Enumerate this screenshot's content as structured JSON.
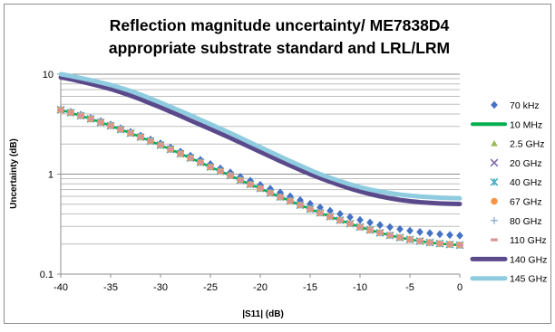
{
  "chart_data": {
    "type": "line",
    "title_lines": [
      "Reflection magnitude uncertainty/ ME7838D4",
      "appropriate substrate standard and LRL/LRM"
    ],
    "xlabel": "|S11| (dB)",
    "ylabel": "Uncertainty (dB)",
    "xlim": [
      -40,
      0
    ],
    "ylim": [
      0.1,
      10
    ],
    "y_scale": "log",
    "grid": true,
    "legend_position": "right",
    "x_ticks": [
      -40,
      -35,
      -30,
      -25,
      -20,
      -15,
      -10,
      -5,
      0
    ],
    "y_ticks": [
      0.1,
      1,
      10
    ],
    "y_tick_labels": [
      "0.1",
      "1",
      "10"
    ],
    "x": [
      -40,
      -39,
      -38,
      -37,
      -36,
      -35,
      -34,
      -33,
      -32,
      -31,
      -30,
      -29,
      -28,
      -27,
      -26,
      -25,
      -24,
      -23,
      -22,
      -21,
      -20,
      -19,
      -18,
      -17,
      -16,
      -15,
      -14,
      -13,
      -12,
      -11,
      -10,
      -9,
      -8,
      -7,
      -6,
      -5,
      -4,
      -3,
      -2,
      -1,
      0
    ],
    "series": [
      {
        "name": "70 kHz",
        "style": "marker",
        "marker": "diamond",
        "color": "#4472C4",
        "values": [
          4.45,
          4.2,
          3.92,
          3.65,
          3.39,
          3.13,
          2.88,
          2.65,
          2.43,
          2.22,
          2.03,
          1.85,
          1.68,
          1.53,
          1.39,
          1.26,
          1.14,
          1.04,
          0.94,
          0.86,
          0.78,
          0.715,
          0.655,
          0.6,
          0.55,
          0.505,
          0.465,
          0.43,
          0.4,
          0.372,
          0.348,
          0.328,
          0.31,
          0.295,
          0.282,
          0.272,
          0.264,
          0.257,
          0.251,
          0.246,
          0.243
        ]
      },
      {
        "name": "10 MHz",
        "style": "line",
        "color": "#00B050",
        "values": [
          4.4,
          4.12,
          3.84,
          3.57,
          3.3,
          3.05,
          2.8,
          2.57,
          2.35,
          2.14,
          1.95,
          1.77,
          1.6,
          1.45,
          1.31,
          1.18,
          1.07,
          0.97,
          0.87,
          0.79,
          0.72,
          0.65,
          0.59,
          0.54,
          0.49,
          0.447,
          0.41,
          0.376,
          0.346,
          0.32,
          0.296,
          0.276,
          0.259,
          0.244,
          0.232,
          0.222,
          0.214,
          0.207,
          0.202,
          0.198,
          0.195
        ]
      },
      {
        "name": "2.5 GHz",
        "style": "marker",
        "marker": "triangle",
        "color": "#9BBB59",
        "values": [
          4.4,
          4.12,
          3.84,
          3.57,
          3.3,
          3.05,
          2.8,
          2.57,
          2.35,
          2.14,
          1.95,
          1.77,
          1.6,
          1.45,
          1.31,
          1.18,
          1.07,
          0.97,
          0.87,
          0.79,
          0.72,
          0.65,
          0.59,
          0.54,
          0.49,
          0.447,
          0.41,
          0.376,
          0.346,
          0.32,
          0.296,
          0.276,
          0.259,
          0.244,
          0.232,
          0.222,
          0.214,
          0.207,
          0.202,
          0.198,
          0.195
        ]
      },
      {
        "name": "20 GHz",
        "style": "marker",
        "marker": "x",
        "color": "#7F6BA8",
        "values": [
          4.4,
          4.12,
          3.84,
          3.57,
          3.3,
          3.05,
          2.8,
          2.57,
          2.35,
          2.14,
          1.95,
          1.77,
          1.6,
          1.45,
          1.31,
          1.18,
          1.07,
          0.97,
          0.87,
          0.79,
          0.72,
          0.65,
          0.59,
          0.54,
          0.49,
          0.447,
          0.41,
          0.376,
          0.346,
          0.32,
          0.296,
          0.276,
          0.259,
          0.244,
          0.232,
          0.222,
          0.214,
          0.207,
          0.202,
          0.198,
          0.195
        ]
      },
      {
        "name": "40 GHz",
        "style": "marker",
        "marker": "asterisk",
        "color": "#4BACC6",
        "values": [
          4.4,
          4.12,
          3.84,
          3.57,
          3.3,
          3.05,
          2.8,
          2.57,
          2.35,
          2.14,
          1.95,
          1.77,
          1.6,
          1.45,
          1.31,
          1.18,
          1.07,
          0.97,
          0.87,
          0.79,
          0.72,
          0.65,
          0.59,
          0.54,
          0.49,
          0.447,
          0.41,
          0.376,
          0.346,
          0.32,
          0.296,
          0.276,
          0.259,
          0.244,
          0.232,
          0.222,
          0.214,
          0.207,
          0.202,
          0.198,
          0.195
        ]
      },
      {
        "name": "67 GHz",
        "style": "marker",
        "marker": "circle",
        "color": "#F79646",
        "values": [
          4.4,
          4.12,
          3.84,
          3.57,
          3.3,
          3.05,
          2.8,
          2.57,
          2.35,
          2.14,
          1.95,
          1.77,
          1.6,
          1.45,
          1.31,
          1.18,
          1.07,
          0.97,
          0.87,
          0.79,
          0.72,
          0.65,
          0.59,
          0.54,
          0.49,
          0.447,
          0.41,
          0.376,
          0.346,
          0.32,
          0.296,
          0.276,
          0.259,
          0.244,
          0.232,
          0.222,
          0.214,
          0.207,
          0.202,
          0.198,
          0.195
        ]
      },
      {
        "name": "80 GHz",
        "style": "marker",
        "marker": "plus",
        "color": "#95B3D7",
        "values": [
          4.4,
          4.12,
          3.84,
          3.57,
          3.3,
          3.05,
          2.8,
          2.57,
          2.35,
          2.14,
          1.95,
          1.77,
          1.6,
          1.45,
          1.31,
          1.18,
          1.07,
          0.97,
          0.87,
          0.79,
          0.72,
          0.65,
          0.59,
          0.54,
          0.49,
          0.447,
          0.41,
          0.376,
          0.346,
          0.32,
          0.296,
          0.276,
          0.259,
          0.244,
          0.232,
          0.222,
          0.214,
          0.207,
          0.202,
          0.198,
          0.195
        ]
      },
      {
        "name": "110 GHz",
        "style": "marker",
        "marker": "dash",
        "color": "#D99594",
        "values": [
          4.4,
          4.12,
          3.84,
          3.57,
          3.3,
          3.05,
          2.8,
          2.57,
          2.35,
          2.14,
          1.95,
          1.77,
          1.6,
          1.45,
          1.31,
          1.18,
          1.07,
          0.97,
          0.87,
          0.79,
          0.72,
          0.65,
          0.59,
          0.54,
          0.49,
          0.447,
          0.41,
          0.376,
          0.346,
          0.32,
          0.296,
          0.276,
          0.259,
          0.244,
          0.232,
          0.222,
          0.214,
          0.207,
          0.202,
          0.198,
          0.195
        ]
      },
      {
        "name": "140 GHz",
        "style": "line",
        "color": "#5B4A8B",
        "values": [
          9.3,
          8.9,
          8.45,
          8.0,
          7.55,
          7.1,
          6.6,
          6.1,
          5.6,
          5.1,
          4.65,
          4.22,
          3.82,
          3.45,
          3.12,
          2.82,
          2.55,
          2.3,
          2.07,
          1.86,
          1.67,
          1.5,
          1.35,
          1.22,
          1.1,
          1.0,
          0.915,
          0.84,
          0.775,
          0.72,
          0.672,
          0.632,
          0.6,
          0.573,
          0.552,
          0.536,
          0.524,
          0.515,
          0.509,
          0.505,
          0.503
        ]
      },
      {
        "name": "145 GHz",
        "style": "line",
        "color": "#8FCCE0",
        "values": [
          10.0,
          9.6,
          9.15,
          8.7,
          8.25,
          7.8,
          7.3,
          6.8,
          6.25,
          5.7,
          5.2,
          4.72,
          4.28,
          3.88,
          3.5,
          3.16,
          2.85,
          2.57,
          2.31,
          2.07,
          1.86,
          1.67,
          1.5,
          1.35,
          1.22,
          1.1,
          1.0,
          0.92,
          0.85,
          0.79,
          0.74,
          0.7,
          0.67,
          0.645,
          0.625,
          0.61,
          0.598,
          0.589,
          0.582,
          0.577,
          0.573
        ]
      }
    ]
  }
}
